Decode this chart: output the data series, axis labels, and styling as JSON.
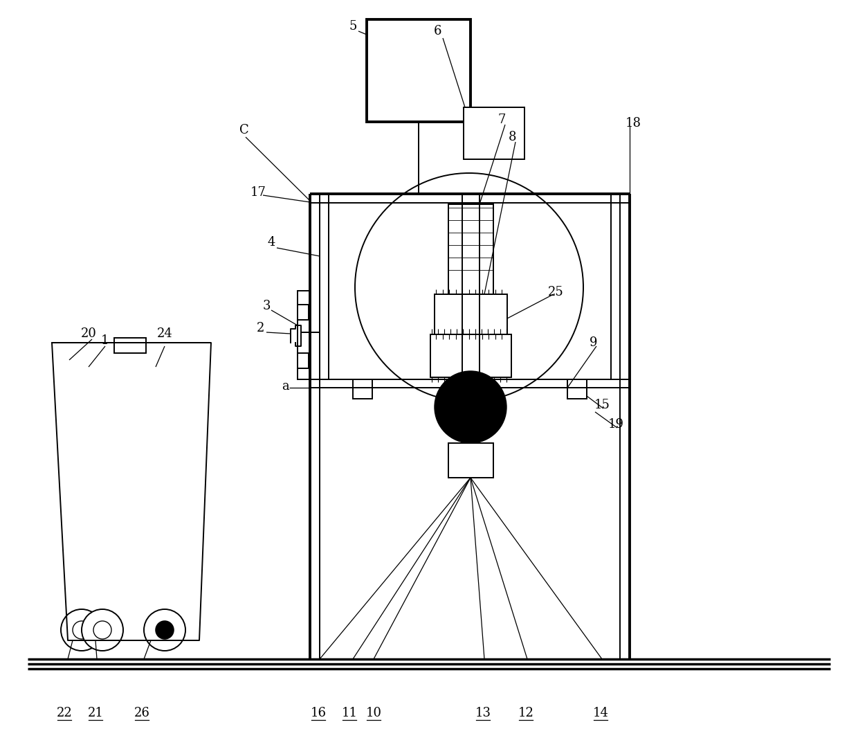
{
  "bg_color": "#ffffff",
  "lc": "#000000",
  "lw": 1.4,
  "tlw": 2.8,
  "fig_w": 12.4,
  "fig_h": 10.66,
  "xmin": 0,
  "xmax": 1240,
  "ymin": 0,
  "ymax": 1066
}
